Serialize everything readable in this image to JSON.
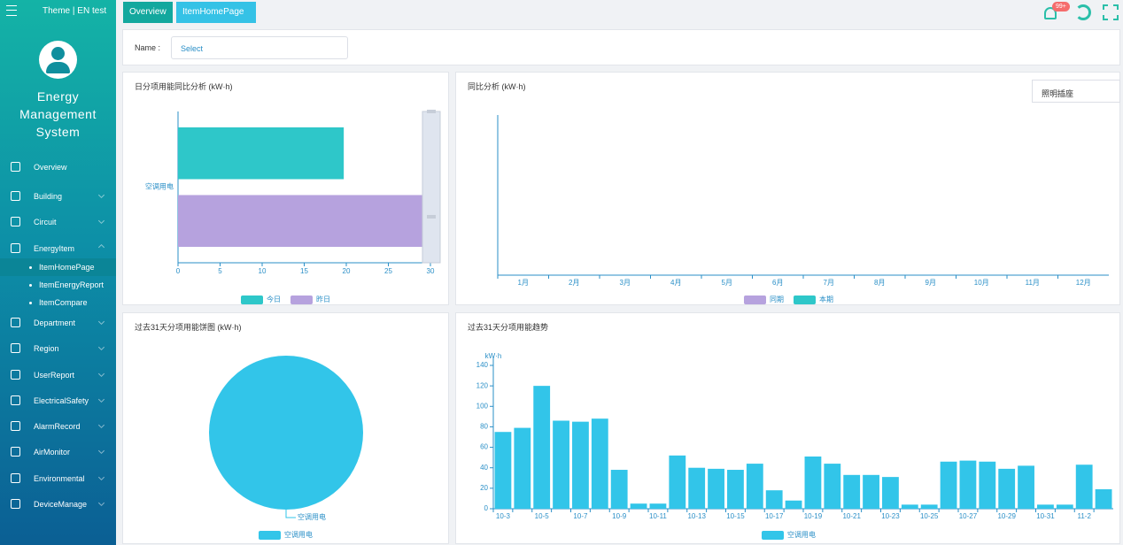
{
  "header": {
    "theme": "Theme | EN",
    "user": "test",
    "badge": "99+"
  },
  "sidebar": {
    "title": "Energy Management System",
    "menu": [
      "Overview",
      "Building",
      "Circuit",
      "EnergyItem",
      "Department",
      "Region",
      "UserReport",
      "ElectricalSafety",
      "AlarmRecord",
      "AirMonitor",
      "Environmental",
      "DeviceManage"
    ],
    "submenu": [
      "ItemHomePage",
      "ItemEnergyReport",
      "ItemCompare"
    ]
  },
  "tabs": [
    "Overview",
    "ItemHomePage"
  ],
  "filter": {
    "label": "Name :",
    "placeholder": "Select"
  },
  "chart_data": [
    {
      "type": "hbar",
      "title": "日分项用能同比分析 (kW·h)",
      "categories": [
        "空调用电"
      ],
      "series": [
        {
          "name": "今日",
          "color": "#2ec7c9",
          "values": [
            19.7
          ]
        },
        {
          "name": "昨日",
          "color": "#b6a2de",
          "values": [
            29.4
          ]
        }
      ],
      "xlim": [
        0,
        30
      ],
      "xticks": [
        0,
        5,
        10,
        15,
        20,
        25,
        30
      ]
    },
    {
      "type": "bar",
      "title": "同比分析 (kW·h)",
      "dropdown": "照明插座",
      "categories": [
        "1月",
        "2月",
        "3月",
        "4月",
        "5月",
        "6月",
        "7月",
        "8月",
        "9月",
        "10月",
        "11月",
        "12月"
      ],
      "series": [
        {
          "name": "同期",
          "color": "#b6a2de",
          "values": [
            null,
            null,
            null,
            null,
            null,
            null,
            null,
            null,
            null,
            null,
            null,
            null
          ]
        },
        {
          "name": "本期",
          "color": "#2ec7c9",
          "values": [
            null,
            null,
            null,
            null,
            null,
            null,
            null,
            null,
            null,
            null,
            null,
            null
          ]
        }
      ]
    },
    {
      "type": "pie",
      "title": "过去31天分项用能饼图 (kW·h)",
      "categories": [
        "空调用电"
      ],
      "values": [
        100
      ],
      "colors": [
        "#32c5e9"
      ]
    },
    {
      "type": "bar",
      "title": "过去31天分项用能趋势",
      "ylabel": "kW·h",
      "categories": [
        "10-3",
        null,
        "10-5",
        null,
        "10-7",
        null,
        "10-9",
        null,
        "10-11",
        null,
        "10-13",
        null,
        "10-15",
        null,
        "10-17",
        null,
        "10-19",
        null,
        "10-21",
        null,
        "10-23",
        null,
        "10-25",
        null,
        "10-27",
        null,
        "10-29",
        null,
        "10-31",
        null,
        "11-2",
        null
      ],
      "series": [
        {
          "name": "空调用电",
          "color": "#32c5e9",
          "values": [
            75,
            79,
            120,
            86,
            85,
            88,
            38,
            5,
            5,
            52,
            40,
            39,
            38,
            44,
            18,
            8,
            51,
            44,
            33,
            33,
            31,
            4,
            4,
            46,
            47,
            46,
            39,
            42,
            4,
            4,
            43,
            19
          ]
        }
      ],
      "ylim": [
        0,
        140
      ],
      "yticks": [
        0,
        20,
        40,
        60,
        80,
        100,
        120,
        140
      ]
    }
  ]
}
